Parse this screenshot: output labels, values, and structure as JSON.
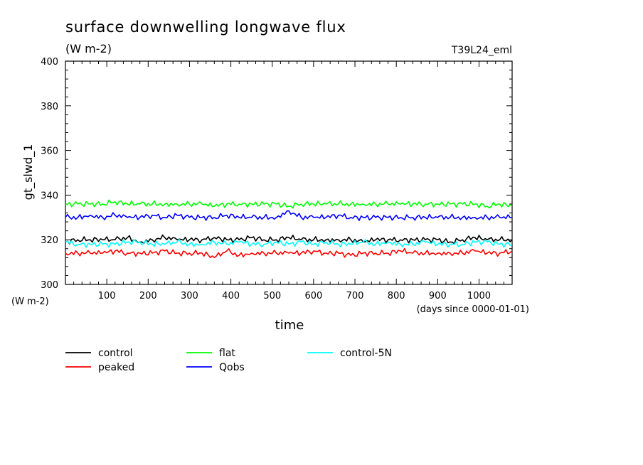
{
  "chart_data": {
    "type": "line",
    "title": "surface downwelling longwave flux",
    "subtitle": "(W m-2)",
    "run_label": "T39L24_eml",
    "xlabel": "time",
    "x_units": "(days since 0000-01-01)",
    "ylabel": "gt_slwd_1",
    "y_units": "(W m-2)",
    "xlim": [
      0,
      1080
    ],
    "ylim": [
      300,
      400
    ],
    "x_ticks": [
      "100",
      "200",
      "300",
      "400",
      "500",
      "600",
      "700",
      "800",
      "900",
      "1000"
    ],
    "y_ticks": [
      "300",
      "320",
      "340",
      "360",
      "380",
      "400"
    ],
    "grid": false,
    "legend_position": "bottom",
    "series": [
      {
        "name": "control",
        "color": "#000000",
        "x": [
          0,
          30,
          60,
          90,
          120,
          150,
          180,
          210,
          240,
          270,
          300,
          330,
          360,
          390,
          420,
          450,
          480,
          510,
          540,
          570,
          600,
          630,
          660,
          690,
          720,
          750,
          780,
          810,
          840,
          870,
          900,
          930,
          960,
          990,
          1020,
          1050,
          1080
        ],
        "values": [
          319,
          320,
          320,
          320,
          320,
          321,
          319,
          320,
          321,
          320,
          320,
          320,
          321,
          320,
          320,
          321,
          320,
          320,
          321,
          320,
          320,
          320,
          320,
          320,
          319,
          320,
          320,
          320,
          320,
          320,
          320,
          319,
          320,
          321,
          320,
          320,
          320
        ]
      },
      {
        "name": "peaked",
        "color": "#ff0000",
        "x": [
          0,
          30,
          60,
          90,
          120,
          150,
          180,
          210,
          240,
          270,
          300,
          330,
          360,
          390,
          420,
          450,
          480,
          510,
          540,
          570,
          600,
          630,
          660,
          690,
          720,
          750,
          780,
          810,
          840,
          870,
          900,
          930,
          960,
          990,
          1020,
          1050,
          1080
        ],
        "values": [
          314,
          314,
          314,
          314,
          315,
          314,
          314,
          314,
          315,
          314,
          314,
          314,
          312,
          315,
          313,
          314,
          314,
          314,
          314,
          314,
          315,
          314,
          314,
          313,
          314,
          314,
          314,
          315,
          314,
          314,
          314,
          314,
          314,
          315,
          314,
          314,
          315
        ]
      },
      {
        "name": "flat",
        "color": "#00ff00",
        "x": [
          0,
          30,
          60,
          90,
          120,
          150,
          180,
          210,
          240,
          270,
          300,
          330,
          360,
          390,
          420,
          450,
          480,
          510,
          540,
          570,
          600,
          630,
          660,
          690,
          720,
          750,
          780,
          810,
          840,
          870,
          900,
          930,
          960,
          990,
          1020,
          1050,
          1080
        ],
        "values": [
          336,
          336,
          336,
          336,
          337,
          336,
          336,
          336,
          336,
          336,
          336,
          336,
          335,
          336,
          336,
          336,
          336,
          336,
          335,
          336,
          336,
          336,
          336,
          336,
          336,
          336,
          336,
          336,
          336,
          336,
          336,
          336,
          336,
          336,
          335,
          336,
          335
        ]
      },
      {
        "name": "Qobs",
        "color": "#0000ff",
        "x": [
          0,
          30,
          60,
          90,
          120,
          150,
          180,
          210,
          240,
          270,
          300,
          330,
          360,
          390,
          420,
          450,
          480,
          510,
          540,
          570,
          600,
          630,
          660,
          690,
          720,
          750,
          780,
          810,
          840,
          870,
          900,
          930,
          960,
          990,
          1020,
          1050,
          1080
        ],
        "values": [
          330,
          330,
          331,
          330,
          331,
          330,
          330,
          331,
          330,
          331,
          330,
          330,
          330,
          331,
          330,
          330,
          330,
          330,
          333,
          330,
          330,
          330,
          331,
          330,
          330,
          330,
          330,
          330,
          330,
          330,
          330,
          330,
          330,
          330,
          330,
          330,
          330
        ]
      },
      {
        "name": "control-5N",
        "color": "#00ffff",
        "x": [
          0,
          30,
          60,
          90,
          120,
          150,
          180,
          210,
          240,
          270,
          300,
          330,
          360,
          390,
          420,
          450,
          480,
          510,
          540,
          570,
          600,
          630,
          660,
          690,
          720,
          750,
          780,
          810,
          840,
          870,
          900,
          930,
          960,
          990,
          1020,
          1050,
          1080
        ],
        "values": [
          319,
          318,
          318,
          318,
          318,
          319,
          319,
          318,
          318,
          319,
          318,
          318,
          319,
          318,
          319,
          318,
          318,
          319,
          318,
          319,
          318,
          319,
          318,
          318,
          319,
          318,
          319,
          318,
          318,
          319,
          318,
          318,
          318,
          319,
          319,
          318,
          318
        ]
      }
    ]
  }
}
